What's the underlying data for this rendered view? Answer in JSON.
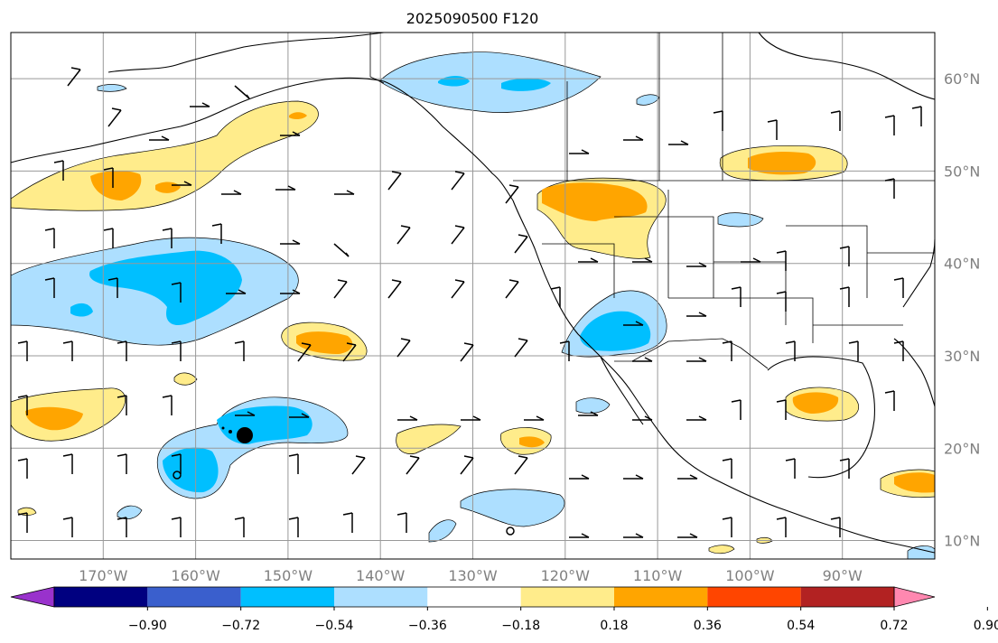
{
  "title": "2025090500 F120",
  "map": {
    "lon_range": [
      -180,
      -80
    ],
    "lat_range": [
      8,
      65
    ],
    "lat_labels": [
      "10°N",
      "20°N",
      "30°N",
      "40°N",
      "50°N",
      "60°N"
    ],
    "lon_labels": [
      "170°W",
      "160°W",
      "150°W",
      "140°W",
      "130°W",
      "120°W",
      "110°W",
      "100°W",
      "90°W"
    ],
    "grid_lines": true
  },
  "colorbar": {
    "tick_labels": [
      "−0.90",
      "−0.72",
      "−0.54",
      "−0.36",
      "−0.18",
      "0.18",
      "0.36",
      "0.54",
      "0.72",
      "0.90"
    ],
    "colors": [
      "#9932CC",
      "#000080",
      "#3A5FCD",
      "#00BFFF",
      "#ADDFFF",
      "#FFFFFF",
      "#FFEC8B",
      "#FFA500",
      "#FF4500",
      "#B22222",
      "#FF88B0"
    ],
    "extend": "both"
  },
  "contour_colors": {
    "neg_light": "#ADDFFF",
    "neg_mid": "#00BFFF",
    "pos_light": "#FFEC8B",
    "pos_mid": "#FFA500"
  }
}
